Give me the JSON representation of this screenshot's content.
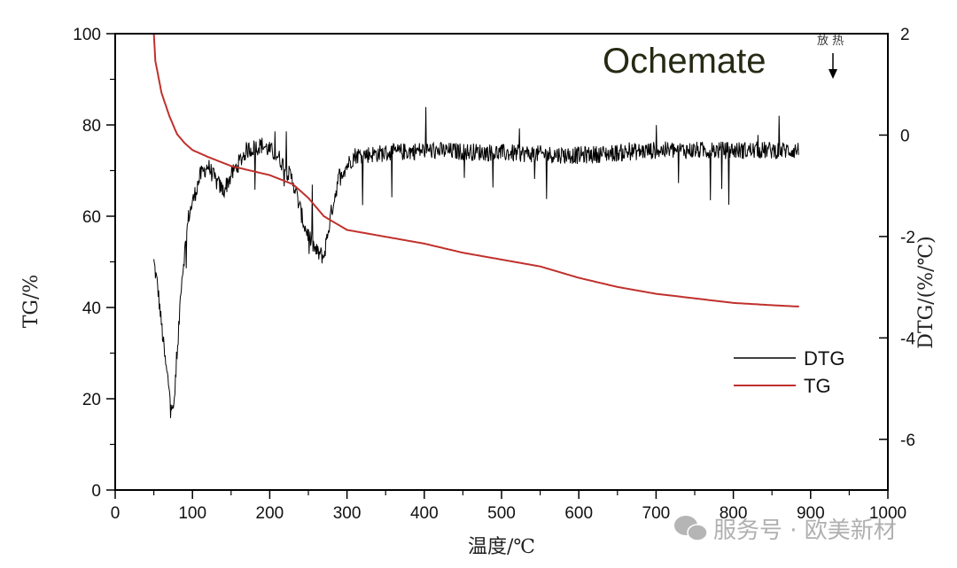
{
  "chart_data": {
    "type": "line",
    "brand_label": "Ochemate",
    "annotation": "放 热",
    "xlabel": "温度/℃",
    "ylabel_left": "TG/%",
    "ylabel_right": "DTG/(%/℃)",
    "xlim": [
      0,
      1000
    ],
    "ylim_left": [
      0,
      100
    ],
    "ylim_right": [
      -7,
      2
    ],
    "xticks": [
      "0",
      "100",
      "200",
      "300",
      "400",
      "500",
      "600",
      "700",
      "800",
      "900",
      "1000"
    ],
    "yticks_left": [
      "0",
      "20",
      "40",
      "60",
      "80",
      "100"
    ],
    "yticks_right": [
      "2",
      "0",
      "-2",
      "-4",
      "-6"
    ],
    "legend_position": "right-middle",
    "series": [
      {
        "name": "DTG",
        "axis": "right",
        "color": "#000000",
        "noise_amplitude": 0.35,
        "points": [
          [
            50,
            -2.5
          ],
          [
            55,
            -3.0
          ],
          [
            65,
            -4.5
          ],
          [
            75,
            -5.5
          ],
          [
            80,
            -4.5
          ],
          [
            85,
            -3.0
          ],
          [
            95,
            -1.6
          ],
          [
            110,
            -0.8
          ],
          [
            120,
            -0.6
          ],
          [
            130,
            -0.9
          ],
          [
            140,
            -1.1
          ],
          [
            150,
            -0.8
          ],
          [
            170,
            -0.3
          ],
          [
            190,
            -0.2
          ],
          [
            210,
            -0.4
          ],
          [
            230,
            -0.9
          ],
          [
            245,
            -1.8
          ],
          [
            260,
            -2.3
          ],
          [
            270,
            -2.4
          ],
          [
            280,
            -1.5
          ],
          [
            290,
            -0.8
          ],
          [
            310,
            -0.4
          ],
          [
            400,
            -0.3
          ],
          [
            600,
            -0.4
          ],
          [
            700,
            -0.3
          ],
          [
            885,
            -0.3
          ]
        ]
      },
      {
        "name": "TG",
        "axis": "left",
        "color": "#c0302c",
        "points": [
          [
            50,
            100
          ],
          [
            52,
            94
          ],
          [
            60,
            87
          ],
          [
            70,
            82
          ],
          [
            80,
            78
          ],
          [
            90,
            76
          ],
          [
            100,
            74.5
          ],
          [
            120,
            73
          ],
          [
            150,
            71
          ],
          [
            200,
            69
          ],
          [
            230,
            67
          ],
          [
            250,
            64
          ],
          [
            270,
            60
          ],
          [
            300,
            57
          ],
          [
            350,
            55.5
          ],
          [
            400,
            54
          ],
          [
            450,
            52
          ],
          [
            500,
            50.5
          ],
          [
            550,
            49
          ],
          [
            600,
            46.5
          ],
          [
            650,
            44.5
          ],
          [
            700,
            43
          ],
          [
            750,
            42
          ],
          [
            800,
            41
          ],
          [
            850,
            40.5
          ],
          [
            885,
            40.2
          ]
        ]
      }
    ]
  },
  "watermark": "服务号 · 欧美新材"
}
